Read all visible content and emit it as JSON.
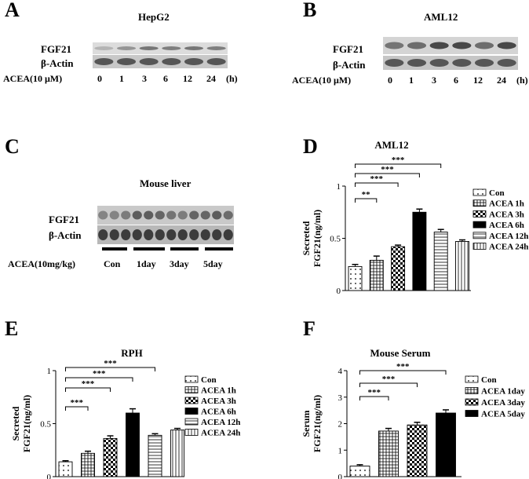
{
  "panels": {
    "A": {
      "letter": "A",
      "title": "HepG2",
      "row1": "FGF21",
      "row2": "β-Actin",
      "treatment": "ACEA(10 μM)",
      "conditions": [
        "0",
        "1",
        "3",
        "6",
        "12",
        "24"
      ],
      "unit": "(h)",
      "band_intensity": [
        0.15,
        0.35,
        0.55,
        0.5,
        0.55,
        0.5
      ]
    },
    "B": {
      "letter": "B",
      "title": "AML12",
      "row1": "FGF21",
      "row2": "β-Actin",
      "treatment": "ACEA(10 μM)",
      "conditions": [
        "0",
        "1",
        "3",
        "6",
        "12",
        "24"
      ],
      "unit": "(h)",
      "band_intensity": [
        0.55,
        0.6,
        0.85,
        0.85,
        0.6,
        0.85
      ]
    },
    "C": {
      "letter": "C",
      "title": "Mouse liver",
      "row1": "FGF21",
      "row2": "β-Actin",
      "treatment": "ACEA(10mg/kg)",
      "conditions": [
        "Con",
        "1day",
        "3day",
        "5day"
      ],
      "band_intensity": [
        0.45,
        0.45,
        0.5,
        0.7,
        0.7,
        0.65,
        0.55,
        0.5,
        0.65,
        0.65,
        0.7,
        0.6
      ]
    },
    "D": {
      "letter": "D",
      "title": "AML12"
    },
    "E": {
      "letter": "E",
      "title": "RPH"
    },
    "F": {
      "letter": "F",
      "title": "Mouse Serum"
    }
  },
  "chart_data": [
    {
      "panel": "D",
      "type": "bar",
      "title": "AML12",
      "ylabel": [
        "Secreted",
        "FGF21(ng/ml)"
      ],
      "ylim": [
        0,
        1
      ],
      "yticks": [
        "0",
        "0.5",
        "1"
      ],
      "categories": [
        "Con",
        "ACEA 1h",
        "ACEA 3h",
        "ACEA 6h",
        "ACEA 12h",
        "ACEA 24h"
      ],
      "values": [
        0.23,
        0.29,
        0.42,
        0.75,
        0.56,
        0.47
      ],
      "errors": [
        0.02,
        0.04,
        0.015,
        0.03,
        0.025,
        0.015
      ],
      "patterns": [
        "dots",
        "grid",
        "checker",
        "solid",
        "hlines",
        "vlines"
      ],
      "significance": [
        "**",
        "***",
        "***",
        "***"
      ],
      "legend": [
        "Con",
        "ACEA 1h",
        "ACEA 3h",
        "ACEA 6h",
        "ACEA 12h",
        "ACEA 24h"
      ]
    },
    {
      "panel": "E",
      "type": "bar",
      "title": "RPH",
      "ylabel": [
        "Secreted",
        "FGF21(ng/ml)"
      ],
      "ylim": [
        0,
        1
      ],
      "yticks": [
        "0",
        "0.5",
        "1"
      ],
      "categories": [
        "Con",
        "ACEA 1h",
        "ACEA 3h",
        "ACEA 6h",
        "ACEA 12h",
        "ACEA 24h"
      ],
      "values": [
        0.14,
        0.22,
        0.36,
        0.6,
        0.39,
        0.44
      ],
      "errors": [
        0.01,
        0.02,
        0.025,
        0.04,
        0.015,
        0.015
      ],
      "patterns": [
        "dots",
        "grid",
        "checker",
        "solid",
        "hlines",
        "vlines"
      ],
      "significance": [
        "***",
        "***",
        "***",
        "***"
      ],
      "legend": [
        "Con",
        "ACEA 1h",
        "ACEA 3h",
        "ACEA 6h",
        "ACEA 12h",
        "ACEA 24h"
      ]
    },
    {
      "panel": "F",
      "type": "bar",
      "title": "Mouse Serum",
      "ylabel": [
        "Serum",
        "FGF21(ng/ml)"
      ],
      "ylim": [
        0,
        4
      ],
      "yticks": [
        "0",
        "1",
        "2",
        "3",
        "4"
      ],
      "categories": [
        "Con",
        "ACEA 1day",
        "ACEA 3day",
        "ACEA 5day"
      ],
      "values": [
        0.4,
        1.72,
        1.95,
        2.4
      ],
      "errors": [
        0.05,
        0.1,
        0.1,
        0.12
      ],
      "patterns": [
        "dots",
        "grid",
        "checker",
        "solid"
      ],
      "significance": [
        "***",
        "***",
        "***"
      ],
      "legend": [
        "Con",
        "ACEA 1day",
        "ACEA 3day",
        "ACEA 5day"
      ]
    }
  ]
}
